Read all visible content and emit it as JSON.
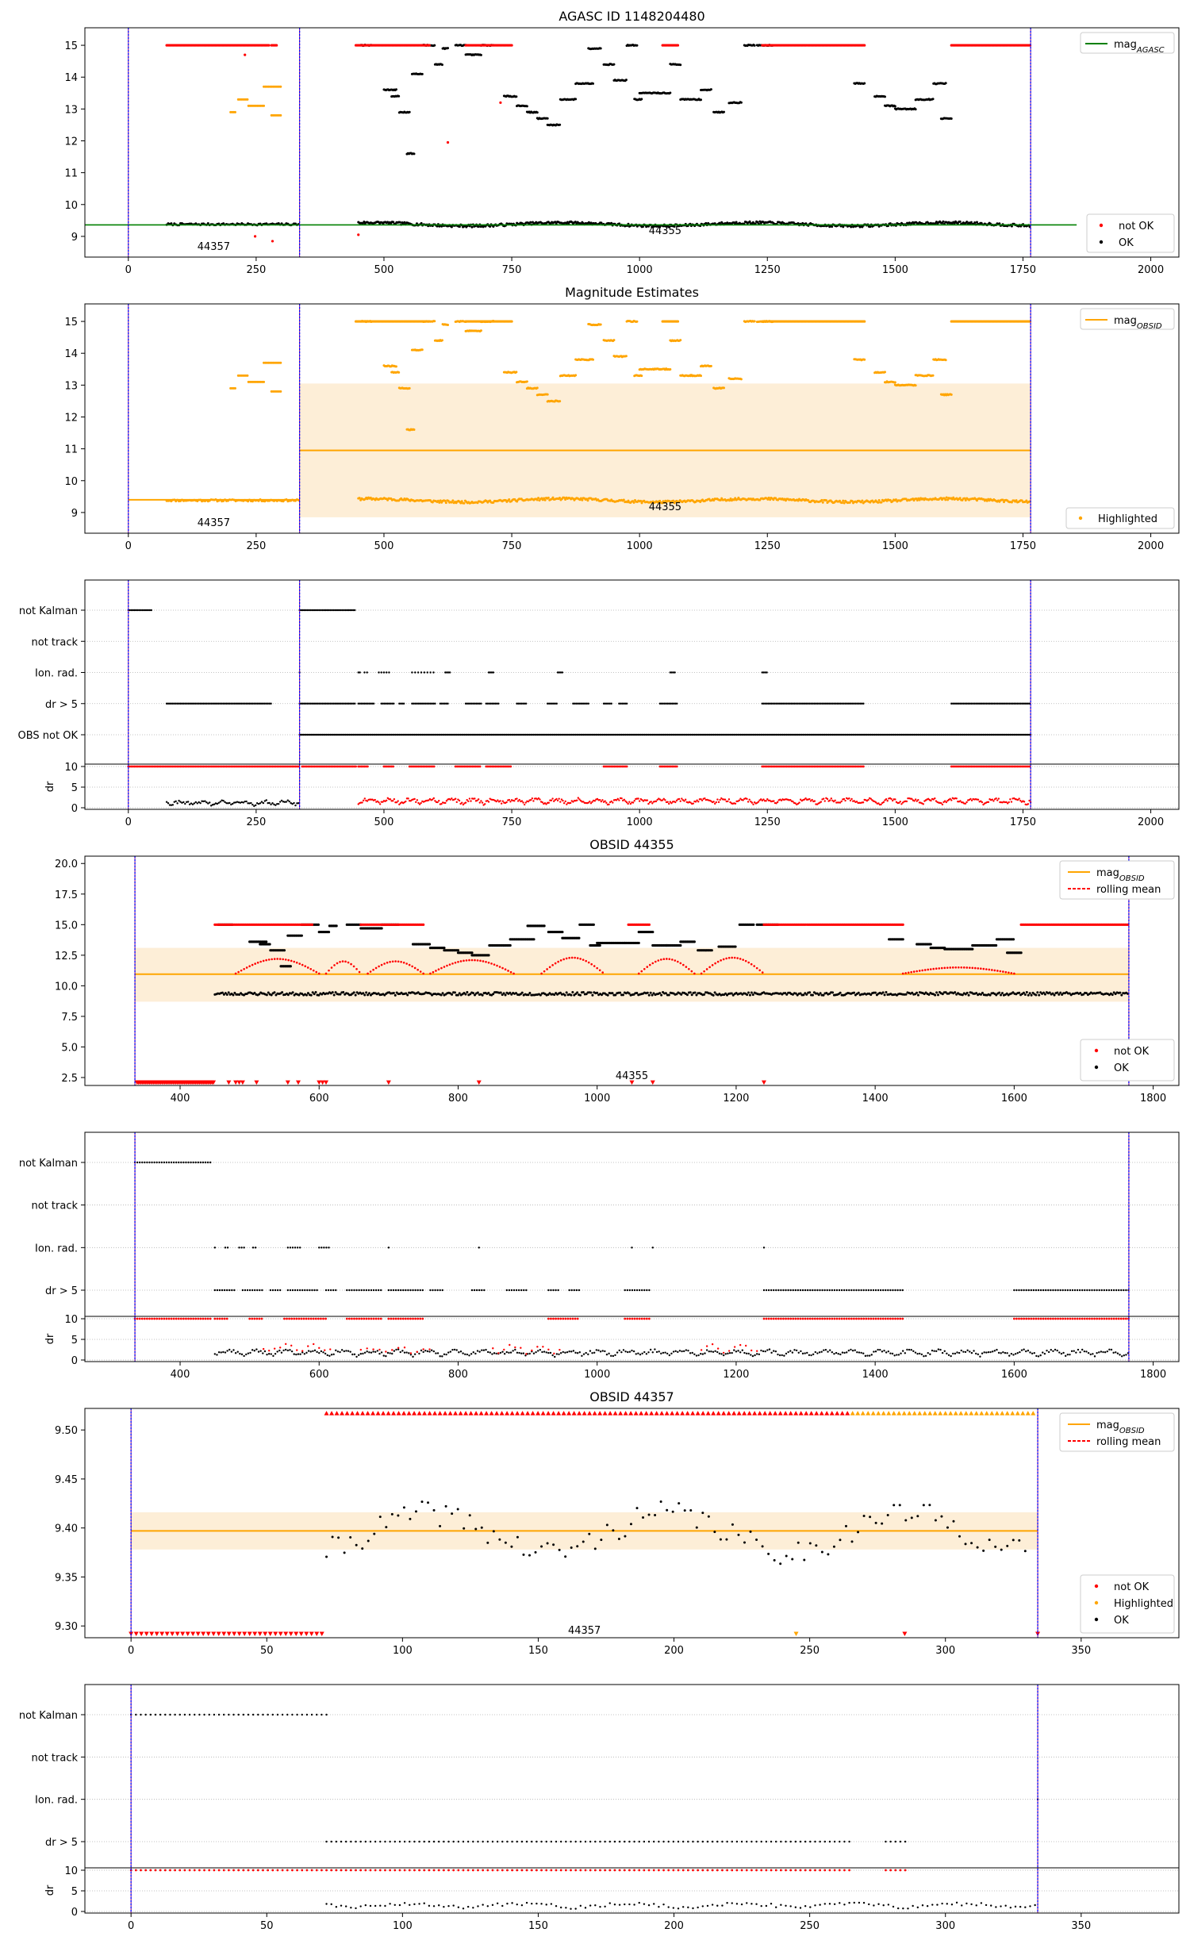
{
  "figure_title": "AGASC ID 1148204480",
  "colors": {
    "not_ok": "#ff0000",
    "ok": "#000000",
    "highlighted": "#ffa500",
    "band": "#fdebd0",
    "agasc_line": "#008000",
    "obs_line": "#800080",
    "obs_line2": "#0000ff",
    "grid": "#b0b0b0"
  },
  "chart_data": [
    {
      "id": "p1",
      "type": "scatter",
      "title": "AGASC ID 1148204480",
      "xlim": [
        -85,
        2055
      ],
      "ylim": [
        8.35,
        15.55
      ],
      "xticks": [
        0,
        250,
        500,
        750,
        1000,
        1250,
        1500,
        1750,
        2000
      ],
      "yticks": [
        9,
        10,
        11,
        12,
        13,
        14,
        15
      ],
      "legend_top": {
        "entries": [
          "mag_AGASC"
        ],
        "placement": "top-right"
      },
      "legend_bottom": {
        "entries": [
          "not OK",
          "OK"
        ],
        "placement": "bottom-right"
      },
      "mag_agasc": 9.36,
      "obs_boundaries": [
        0,
        335,
        1765
      ],
      "obs_labels": [
        {
          "text": "44357",
          "x": 167,
          "y": 8.7
        },
        {
          "text": "44355",
          "x": 1050,
          "y": 9.2
        }
      ]
    },
    {
      "id": "p2",
      "type": "scatter",
      "title": "Magnitude Estimates",
      "xlim": [
        -85,
        2055
      ],
      "ylim": [
        8.35,
        15.55
      ],
      "xticks": [
        0,
        250,
        500,
        750,
        1000,
        1250,
        1500,
        1750,
        2000
      ],
      "yticks": [
        9,
        10,
        11,
        12,
        13,
        14,
        15
      ],
      "legend_top": {
        "entries": [
          "mag_OBSID"
        ],
        "placement": "top-right"
      },
      "legend_bottom": {
        "entries": [
          "Highlighted"
        ],
        "placement": "bottom-right"
      },
      "segments": [
        {
          "x0": 0,
          "x1": 335,
          "mean": 9.4,
          "lo": 9.38,
          "hi": 9.42
        },
        {
          "x0": 335,
          "x1": 1765,
          "mean": 10.95,
          "lo": 8.85,
          "hi": 13.05
        }
      ],
      "obs_boundaries": [
        0,
        335,
        1765
      ],
      "obs_labels": [
        {
          "text": "44357",
          "x": 167,
          "y": 8.7
        },
        {
          "text": "44355",
          "x": 1050,
          "y": 9.2
        }
      ]
    },
    {
      "id": "p3",
      "type": "flags",
      "categories": [
        "not Kalman",
        "not track",
        "Ion. rad.",
        "dr > 5",
        "OBS not OK"
      ],
      "xlim": [
        -85,
        2055
      ],
      "xticks": [
        0,
        250,
        500,
        750,
        1000,
        1250,
        1500,
        1750,
        2000
      ],
      "dr_ylim": [
        0,
        10
      ],
      "dr_yticks": [
        0,
        5,
        10
      ],
      "dr_label": "dr",
      "obs_boundaries": [
        0,
        335,
        1765
      ]
    },
    {
      "id": "p4",
      "type": "scatter",
      "title": "OBSID 44355",
      "xlim": [
        263,
        1837
      ],
      "ylim": [
        1.85,
        20.6
      ],
      "xticks": [
        400,
        600,
        800,
        1000,
        1200,
        1400,
        1600,
        1800
      ],
      "yticks": [
        2.5,
        5.0,
        7.5,
        10.0,
        12.5,
        15.0,
        17.5,
        20.0
      ],
      "ytick_labels": [
        "2.5",
        "5.0",
        "7.5",
        "10.0",
        "12.5",
        "15.0",
        "17.5",
        "20.0"
      ],
      "legend_top": {
        "entries": [
          "mag_OBSID",
          "rolling mean"
        ],
        "placement": "top-right"
      },
      "legend_bottom": {
        "entries": [
          "not OK",
          "OK"
        ],
        "placement": "bottom-right"
      },
      "band": {
        "x0": 335,
        "x1": 1765,
        "mean": 10.95,
        "lo": 8.7,
        "hi": 13.1
      },
      "obs_boundaries": [
        335,
        1765
      ],
      "obs_labels": [
        {
          "text": "44355",
          "x": 1050,
          "y": 2.7
        }
      ]
    },
    {
      "id": "p5",
      "type": "flags",
      "categories": [
        "not Kalman",
        "not track",
        "Ion. rad.",
        "dr > 5"
      ],
      "xlim": [
        263,
        1837
      ],
      "xticks": [
        400,
        600,
        800,
        1000,
        1200,
        1400,
        1600,
        1800
      ],
      "dr_ylim": [
        0,
        10
      ],
      "dr_yticks": [
        0,
        5,
        10
      ],
      "dr_label": "dr",
      "obs_boundaries": [
        335,
        1765
      ]
    },
    {
      "id": "p6",
      "type": "scatter",
      "title": "OBSID 44357",
      "xlim": [
        -17,
        386
      ],
      "ylim": [
        9.288,
        9.522
      ],
      "xticks": [
        0,
        50,
        100,
        150,
        200,
        250,
        300,
        350
      ],
      "yticks": [
        9.3,
        9.35,
        9.4,
        9.45,
        9.5
      ],
      "ytick_labels": [
        "9.30",
        "9.35",
        "9.40",
        "9.45",
        "9.50"
      ],
      "legend_top": {
        "entries": [
          "mag_OBSID",
          "rolling mean"
        ],
        "placement": "top-right"
      },
      "legend_bottom": {
        "entries": [
          "not OK",
          "Highlighted",
          "OK"
        ],
        "placement": "bottom-right"
      },
      "band": {
        "x0": 0,
        "x1": 334,
        "mean": 9.397,
        "lo": 9.378,
        "hi": 9.416
      },
      "obs_boundaries": [
        0,
        334
      ],
      "obs_labels": [
        {
          "text": "44357",
          "x": 167,
          "y": 9.296
        }
      ]
    },
    {
      "id": "p7",
      "type": "flags",
      "categories": [
        "not Kalman",
        "not track",
        "Ion. rad.",
        "dr > 5"
      ],
      "xlim": [
        -17,
        386
      ],
      "xticks": [
        0,
        50,
        100,
        150,
        200,
        250,
        300,
        350
      ],
      "dr_ylim": [
        0,
        10
      ],
      "dr_yticks": [
        0,
        5,
        10
      ],
      "dr_label": "dr",
      "obs_boundaries": [
        0,
        334
      ]
    }
  ]
}
